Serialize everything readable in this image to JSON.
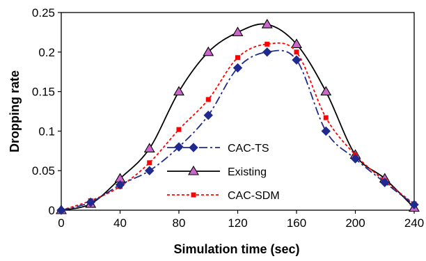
{
  "chart_data": {
    "type": "line",
    "title": "",
    "xlabel": "Simulation time (sec)",
    "ylabel": "Dropping rate",
    "xlim": [
      0,
      240
    ],
    "ylim": [
      0,
      0.25
    ],
    "x_ticks": [
      "0",
      "40",
      "80",
      "120",
      "160",
      "200",
      "240"
    ],
    "y_ticks": [
      "0",
      "0.05",
      "0.1",
      "0.15",
      "0.2",
      "0.25"
    ],
    "x_tick_values": [
      0,
      40,
      80,
      120,
      160,
      200,
      240
    ],
    "y_tick_values": [
      0,
      0.05,
      0.1,
      0.15,
      0.2,
      0.25
    ],
    "grid": false,
    "legend_position": "bottom-center",
    "x": [
      0,
      20,
      40,
      60,
      80,
      100,
      120,
      140,
      160,
      180,
      200,
      220,
      240
    ],
    "series": [
      {
        "name": "CAC-TS",
        "values": [
          0,
          0.01,
          0.032,
          0.05,
          0.08,
          0.12,
          0.18,
          0.2,
          0.19,
          0.1,
          0.065,
          0.035,
          0.007
        ],
        "color": "#1f2a8c",
        "line_style": "dash-dot",
        "marker": "diamond"
      },
      {
        "name": "Existing",
        "values": [
          0,
          0.008,
          0.04,
          0.078,
          0.15,
          0.2,
          0.225,
          0.235,
          0.21,
          0.15,
          0.07,
          0.04,
          0.003
        ],
        "color": "#000000",
        "line_style": "solid",
        "marker": "triangle",
        "marker_fill": "#cc66cc"
      },
      {
        "name": "CAC-SDM",
        "values": [
          0,
          0.012,
          0.03,
          0.06,
          0.102,
          0.14,
          0.193,
          0.21,
          0.2,
          0.117,
          0.07,
          0.037,
          0.008
        ],
        "color": "#ff0000",
        "line_style": "dotted",
        "marker": "square"
      }
    ]
  }
}
